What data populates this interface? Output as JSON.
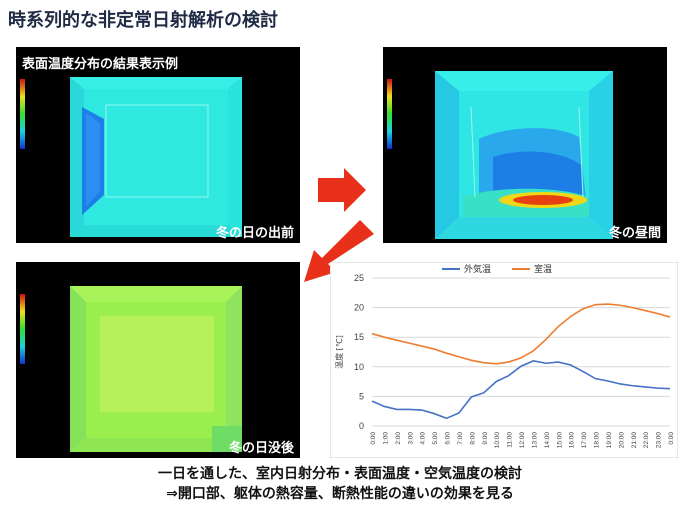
{
  "page": {
    "title": "時系列的な非定常日射解析の検討",
    "caption_line1": "一日を通した、室内日射分布・表面温度・空気温度の検討",
    "caption_line2": "⇒開口部、躯体の熱容量、断熱性能の違いの効果を見る"
  },
  "panels": {
    "sunrise": {
      "header": "表面温度分布の結果表示例",
      "label": "冬の日の出前"
    },
    "noon": {
      "label": "冬の昼間"
    },
    "sunset": {
      "label": "冬の日没後"
    }
  },
  "icons": {
    "arrow1": "arrow-right-icon",
    "arrow2": "arrow-down-left-icon"
  },
  "colors": {
    "outdoor": "#4472c4",
    "indoor": "#ed7d31",
    "arrow": "#e8301a"
  },
  "chart_data": {
    "type": "line",
    "ylabel": "温度 [℃]",
    "ylim": [
      0,
      25
    ],
    "yticks": [
      0,
      5,
      10,
      15,
      20,
      25
    ],
    "legend_position": "top",
    "categories": [
      "0:00",
      "1:00",
      "2:00",
      "3:00",
      "4:00",
      "5:00",
      "6:00",
      "7:00",
      "8:00",
      "9:00",
      "10:00",
      "11:00",
      "12:00",
      "13:00",
      "14:00",
      "15:00",
      "16:00",
      "17:00",
      "18:00",
      "19:00",
      "20:00",
      "21:00",
      "22:00",
      "23:00",
      "0:00"
    ],
    "series": [
      {
        "name": "外気温",
        "color": "#4472c4",
        "values": [
          4.2,
          3.3,
          2.8,
          2.8,
          2.7,
          2.1,
          1.3,
          2.2,
          4.9,
          5.6,
          7.5,
          8.5,
          10.1,
          11.0,
          10.6,
          10.8,
          10.3,
          9.2,
          8.0,
          7.6,
          7.1,
          6.8,
          6.6,
          6.4,
          6.3
        ]
      },
      {
        "name": "室温",
        "color": "#ed7d31",
        "values": [
          15.6,
          15.0,
          14.5,
          14.0,
          13.5,
          13.0,
          12.3,
          11.7,
          11.1,
          10.7,
          10.5,
          10.8,
          11.5,
          12.7,
          14.6,
          16.8,
          18.5,
          19.8,
          20.5,
          20.6,
          20.4,
          20.0,
          19.5,
          19.0,
          18.4
        ]
      }
    ]
  }
}
